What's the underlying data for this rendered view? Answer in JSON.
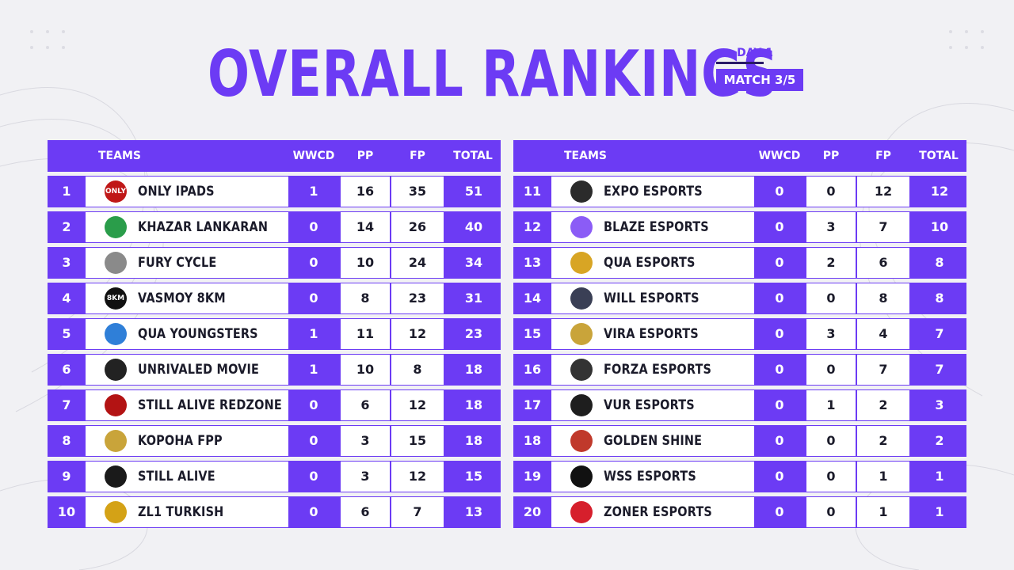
{
  "title": "OVERALL RANKINGS",
  "day_label": "DAY 1",
  "match_label": "MATCH 3/5",
  "headers": {
    "teams": "TEAMS",
    "wwcd": "WWCD",
    "pp": "PP",
    "fp": "FP",
    "total": "TOTAL"
  },
  "colors": {
    "accent": "#6c3bf4",
    "background": "#f1f1f4",
    "dark": "#2a1a68"
  },
  "left_rows": [
    {
      "rank": "1",
      "logo_icon": "only-ipads-logo",
      "logo_color": "#c01818",
      "logo_text": "ONLY",
      "team": "ONLY IPADS",
      "wwcd": "1",
      "pp": "16",
      "fp": "35",
      "total": "51"
    },
    {
      "rank": "2",
      "logo_icon": "khazar-lankaran-logo",
      "logo_color": "#2a9d4a",
      "logo_text": "",
      "team": "KHAZAR LANKARAN",
      "wwcd": "0",
      "pp": "14",
      "fp": "26",
      "total": "40"
    },
    {
      "rank": "3",
      "logo_icon": "fury-cycle-logo",
      "logo_color": "#8a8a8a",
      "logo_text": "",
      "team": "FURY CYCLE",
      "wwcd": "0",
      "pp": "10",
      "fp": "24",
      "total": "34"
    },
    {
      "rank": "4",
      "logo_icon": "vasmoy-8km-logo",
      "logo_color": "#111111",
      "logo_text": "8KM",
      "team": "VASMOY 8KM",
      "wwcd": "0",
      "pp": "8",
      "fp": "23",
      "total": "31"
    },
    {
      "rank": "5",
      "logo_icon": "qua-youngsters-logo",
      "logo_color": "#2f7fd8",
      "logo_text": "",
      "team": "QUA YOUNGSTERS",
      "wwcd": "1",
      "pp": "11",
      "fp": "12",
      "total": "23"
    },
    {
      "rank": "6",
      "logo_icon": "unrivaled-movie-logo",
      "logo_color": "#222222",
      "logo_text": "",
      "team": "UNRIVALED MOVIE",
      "wwcd": "1",
      "pp": "10",
      "fp": "8",
      "total": "18"
    },
    {
      "rank": "7",
      "logo_icon": "still-alive-redzone-logo",
      "logo_color": "#b31313",
      "logo_text": "",
      "team": "STILL ALIVE REDZONE",
      "wwcd": "0",
      "pp": "6",
      "fp": "12",
      "total": "18"
    },
    {
      "rank": "8",
      "logo_icon": "kopoha-fpp-logo",
      "logo_color": "#c9a43a",
      "logo_text": "",
      "team": "KOPOHA FPP",
      "wwcd": "0",
      "pp": "3",
      "fp": "15",
      "total": "18"
    },
    {
      "rank": "9",
      "logo_icon": "still-alive-logo",
      "logo_color": "#1a1a1a",
      "logo_text": "",
      "team": "STILL ALIVE",
      "wwcd": "0",
      "pp": "3",
      "fp": "12",
      "total": "15"
    },
    {
      "rank": "10",
      "logo_icon": "zl1-turkish-logo",
      "logo_color": "#d4a216",
      "logo_text": "",
      "team": "ZL1 TURKISH",
      "wwcd": "0",
      "pp": "6",
      "fp": "7",
      "total": "13"
    }
  ],
  "right_rows": [
    {
      "rank": "11",
      "logo_icon": "expo-esports-logo",
      "logo_color": "#2b2b2b",
      "logo_text": "",
      "team": "EXPO ESPORTS",
      "wwcd": "0",
      "pp": "0",
      "fp": "12",
      "total": "12"
    },
    {
      "rank": "12",
      "logo_icon": "blaze-esports-logo",
      "logo_color": "#8b5cf6",
      "logo_text": "",
      "team": "BLAZE ESPORTS",
      "wwcd": "0",
      "pp": "3",
      "fp": "7",
      "total": "10"
    },
    {
      "rank": "13",
      "logo_icon": "qua-esports-logo",
      "logo_color": "#d8a524",
      "logo_text": "",
      "team": "QUA ESPORTS",
      "wwcd": "0",
      "pp": "2",
      "fp": "6",
      "total": "8"
    },
    {
      "rank": "14",
      "logo_icon": "will-esports-logo",
      "logo_color": "#3a3f55",
      "logo_text": "",
      "team": "WILL ESPORTS",
      "wwcd": "0",
      "pp": "0",
      "fp": "8",
      "total": "8"
    },
    {
      "rank": "15",
      "logo_icon": "vira-esports-logo",
      "logo_color": "#c9a43a",
      "logo_text": "",
      "team": "VIRA ESPORTS",
      "wwcd": "0",
      "pp": "3",
      "fp": "4",
      "total": "7"
    },
    {
      "rank": "16",
      "logo_icon": "forza-esports-logo",
      "logo_color": "#333333",
      "logo_text": "",
      "team": "FORZA ESPORTS",
      "wwcd": "0",
      "pp": "0",
      "fp": "7",
      "total": "7"
    },
    {
      "rank": "17",
      "logo_icon": "vur-esports-logo",
      "logo_color": "#1e1e1e",
      "logo_text": "",
      "team": "VUR ESPORTS",
      "wwcd": "0",
      "pp": "1",
      "fp": "2",
      "total": "3"
    },
    {
      "rank": "18",
      "logo_icon": "golden-shine-logo",
      "logo_color": "#c0392b",
      "logo_text": "",
      "team": "GOLDEN SHINE",
      "wwcd": "0",
      "pp": "0",
      "fp": "2",
      "total": "2"
    },
    {
      "rank": "19",
      "logo_icon": "wss-esports-logo",
      "logo_color": "#111111",
      "logo_text": "",
      "team": "WSS ESPORTS",
      "wwcd": "0",
      "pp": "0",
      "fp": "1",
      "total": "1"
    },
    {
      "rank": "20",
      "logo_icon": "zoner-esports-logo",
      "logo_color": "#d61f2c",
      "logo_text": "",
      "team": "ZONER ESPORTS",
      "wwcd": "0",
      "pp": "0",
      "fp": "1",
      "total": "1"
    }
  ]
}
